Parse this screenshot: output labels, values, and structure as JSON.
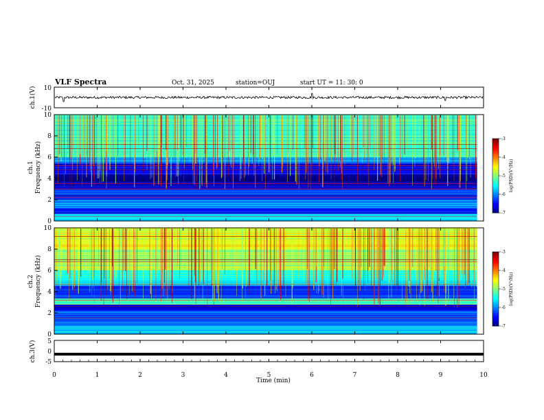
{
  "header": {
    "title": "VLF Spectra",
    "date": "Oct. 31, 2025",
    "station": "station=OUJ",
    "start_ut": "start UT =  11: 30: 0"
  },
  "chart_data": [
    {
      "type": "line",
      "panel": "ch1-waveform",
      "ylabel": "ch.1(V)",
      "ylim": [
        -10,
        10
      ],
      "yticks": [
        "10",
        "-10"
      ],
      "description_values": {
        "baseline": 0,
        "typical_amplitude": 1.2
      },
      "spikes": [
        {
          "x": 0.22,
          "y": -4
        },
        {
          "x": 6.0,
          "y": 4
        },
        {
          "x": 9.1,
          "y": -3
        }
      ]
    },
    {
      "type": "heatmap",
      "panel": "ch1-spectrogram",
      "ylabel": "ch.1\nFrequency (kHz)",
      "ylim": [
        0,
        10
      ],
      "yticks": [
        "0",
        "2",
        "4",
        "6",
        "8",
        "10"
      ],
      "xlim": [
        0,
        10
      ],
      "colorbar": {
        "label": "log(PSD)(V²/Hz)",
        "range": [
          -7,
          -3
        ],
        "ticks": [
          "-3",
          "-4",
          "-5",
          "-6",
          "-7"
        ]
      },
      "bands": [
        {
          "f": [
            0.0,
            0.7
          ],
          "level": -5.6
        },
        {
          "f": [
            0.7,
            1.2
          ],
          "level": -6.4
        },
        {
          "f": [
            1.2,
            2.0
          ],
          "level": -5.9
        },
        {
          "f": [
            2.0,
            3.0
          ],
          "level": -6.3
        },
        {
          "f": [
            3.0,
            3.6
          ],
          "level": -6.8
        },
        {
          "f": [
            3.6,
            4.4
          ],
          "level": -7.0
        },
        {
          "f": [
            4.4,
            5.4
          ],
          "level": -6.5
        },
        {
          "f": [
            5.4,
            6.0
          ],
          "level": -6.0
        },
        {
          "f": [
            6.0,
            10.0
          ],
          "level": -5.3
        }
      ],
      "tones_khz": [
        0.4,
        2.2,
        3.0,
        3.5,
        4.8,
        5.2,
        6.8,
        7.2
      ]
    },
    {
      "type": "heatmap",
      "panel": "ch2-spectrogram",
      "ylabel": "ch.2\nFrequency (kHz)",
      "ylim": [
        0,
        10
      ],
      "yticks": [
        "0",
        "2",
        "4",
        "6",
        "8",
        "10"
      ],
      "xlim": [
        0,
        10
      ],
      "colorbar": {
        "label": "log(PSD)(V²/Hz)",
        "range": [
          -7,
          -3
        ],
        "ticks": [
          "-3",
          "-4",
          "-5",
          "-6",
          "-7"
        ]
      },
      "bands": [
        {
          "f": [
            0.0,
            0.8
          ],
          "level": -5.7
        },
        {
          "f": [
            0.8,
            2.2
          ],
          "level": -6.2
        },
        {
          "f": [
            2.2,
            2.8
          ],
          "level": -6.6
        },
        {
          "f": [
            2.8,
            3.4
          ],
          "level": -5.2
        },
        {
          "f": [
            3.4,
            4.6
          ],
          "level": -6.3
        },
        {
          "f": [
            4.6,
            6.0
          ],
          "level": -5.5
        },
        {
          "f": [
            6.0,
            8.0
          ],
          "level": -4.9
        },
        {
          "f": [
            8.0,
            10.0
          ],
          "level": -4.6
        }
      ],
      "tones_khz": [
        1.5,
        2.6,
        3.2,
        4.7,
        6.8,
        7.0,
        9.2
      ]
    },
    {
      "type": "line",
      "panel": "ch3-waveform",
      "ylabel": "ch.3(V)",
      "ylim": [
        -5,
        5
      ],
      "yticks": [
        "5",
        "0",
        "-5"
      ],
      "x": [
        0,
        10
      ],
      "y": [
        -1.5,
        -1.5
      ]
    }
  ],
  "xaxis": {
    "label": "Time (min)",
    "range": [
      0,
      10
    ],
    "ticks": [
      "0",
      "1",
      "2",
      "3",
      "4",
      "5",
      "6",
      "7",
      "8",
      "9",
      "10"
    ]
  }
}
